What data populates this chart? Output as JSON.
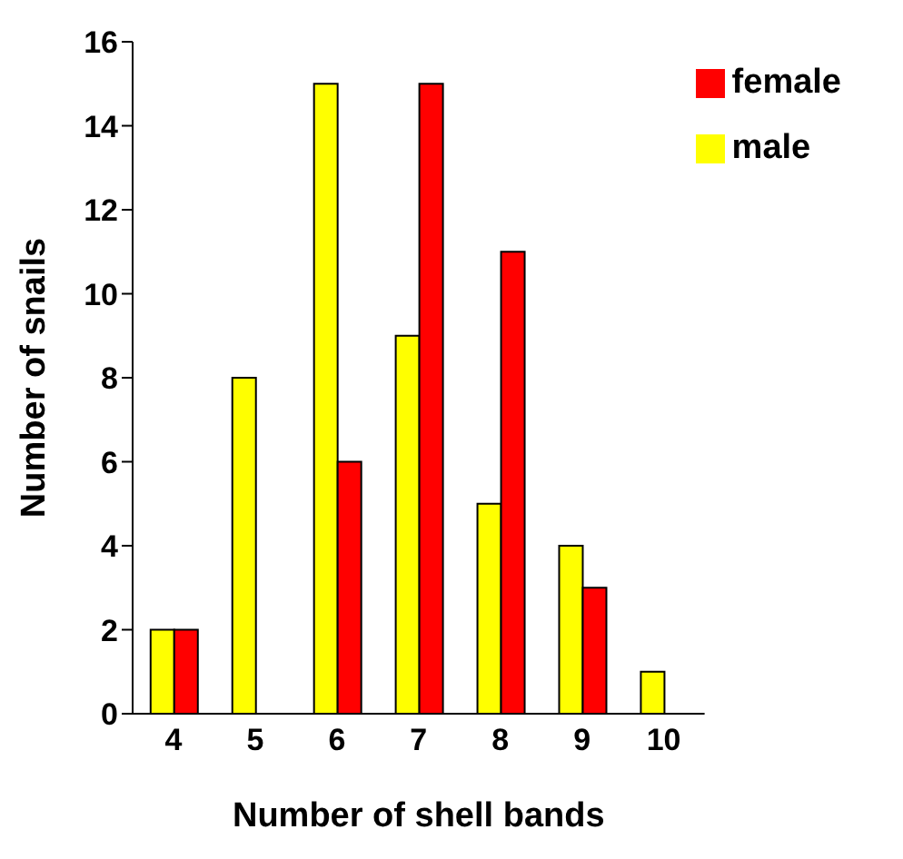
{
  "chart_data": {
    "type": "bar",
    "xlabel": "Number of shell bands",
    "ylabel": "Number of snails",
    "categories": [
      "4",
      "5",
      "6",
      "7",
      "8",
      "9",
      "10"
    ],
    "series": [
      {
        "name": "male",
        "color": "#ffff00",
        "values": [
          2,
          8,
          15,
          9,
          5,
          4,
          1
        ]
      },
      {
        "name": "female",
        "color": "#ff0000",
        "values": [
          2,
          0,
          6,
          15,
          11,
          3,
          0
        ]
      }
    ],
    "ylim": [
      0,
      16
    ],
    "yticks": [
      0,
      2,
      4,
      6,
      8,
      10,
      12,
      14,
      16
    ],
    "grid": false,
    "legend": "top right"
  }
}
